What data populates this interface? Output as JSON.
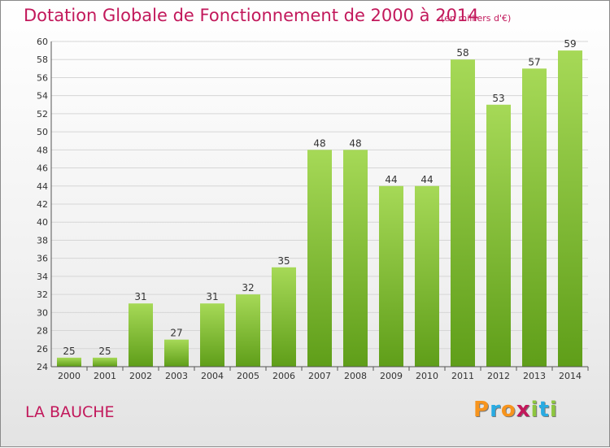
{
  "chart_data": {
    "type": "bar",
    "title": "Dotation Globale de Fonctionnement de 2000 à 2014",
    "subtitle": "(en milliers d'€)",
    "categories": [
      "2000",
      "2001",
      "2002",
      "2003",
      "2004",
      "2005",
      "2006",
      "2007",
      "2008",
      "2009",
      "2010",
      "2011",
      "2012",
      "2013",
      "2014"
    ],
    "values": [
      25,
      25,
      31,
      27,
      31,
      32,
      35,
      48,
      48,
      44,
      44,
      58,
      53,
      57,
      59
    ],
    "ylim": [
      24,
      60
    ],
    "yticks": [
      24,
      26,
      28,
      30,
      32,
      34,
      36,
      38,
      40,
      42,
      44,
      46,
      48,
      50,
      52,
      54,
      56,
      58,
      60
    ],
    "grid": true,
    "bar_color": "#8dc63f",
    "xlabel": "",
    "ylabel": ""
  },
  "place_name": "LA BAUCHE",
  "logo": {
    "text": "Proxiti",
    "letter_colors": [
      "#f7941d",
      "#29abe2",
      "#f7941d",
      "#c2185b",
      "#8dc63f",
      "#29abe2",
      "#8dc63f"
    ]
  },
  "colors": {
    "title": "#c2185b",
    "grid": "#d6d6d6",
    "axis": "#555555"
  }
}
